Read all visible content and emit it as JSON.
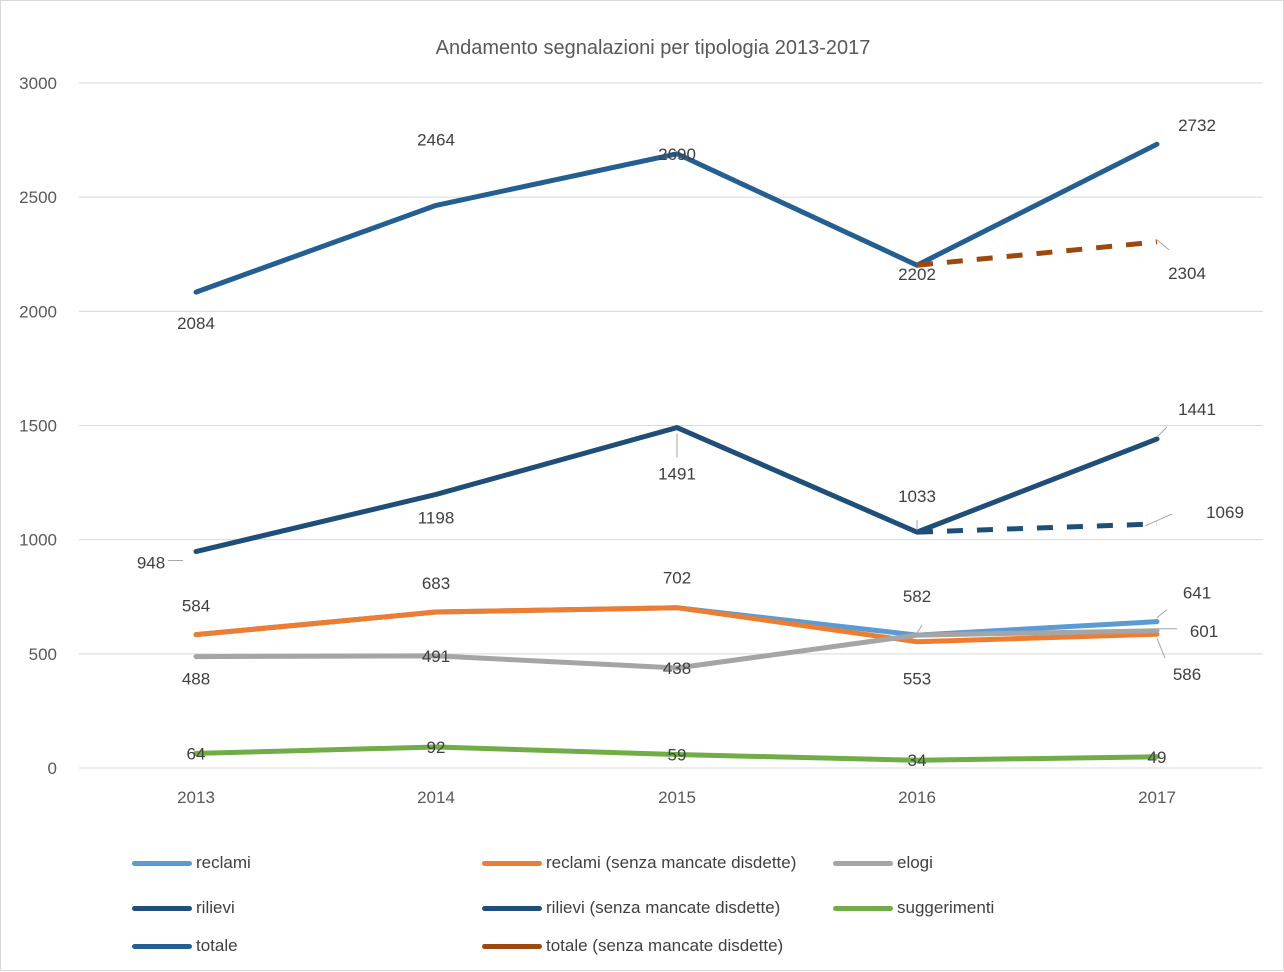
{
  "chart_data": {
    "type": "line",
    "title": "Andamento segnalazioni per tipologia 2013-2017",
    "categories": [
      "2013",
      "2014",
      "2015",
      "2016",
      "2017"
    ],
    "ylim": [
      0,
      3000
    ],
    "yticks": [
      "0",
      "500",
      "1000",
      "1500",
      "2000",
      "2500",
      "3000"
    ],
    "grid": true,
    "legend_position": "bottom",
    "series": [
      {
        "name": "reclami",
        "color": "#5b9bd5",
        "dash": false,
        "values": [
          584,
          683,
          702,
          582,
          641
        ],
        "labels": [
          "",
          "",
          "",
          "",
          "641"
        ]
      },
      {
        "name": "reclami (senza mancate disdette)",
        "color": "#ed7d31",
        "dash": false,
        "values": [
          584,
          683,
          702,
          553,
          586
        ],
        "labels": [
          "584",
          "683",
          "702",
          "553",
          "586"
        ]
      },
      {
        "name": "elogi",
        "color": "#a5a5a5",
        "dash": false,
        "values": [
          488,
          491,
          438,
          582,
          601
        ],
        "labels": [
          "488",
          "491",
          "438",
          "582",
          "601"
        ]
      },
      {
        "name": "rilievi",
        "color": "#1f4e79",
        "dash": false,
        "values": [
          948,
          1198,
          1491,
          1033,
          1441
        ],
        "labels": [
          "948",
          "1198",
          "1491",
          "1033",
          "1441"
        ]
      },
      {
        "name": "rilievi (senza mancate disdette)",
        "color": "#1f4e79",
        "dash": true,
        "values": [
          null,
          null,
          null,
          1033,
          1069
        ],
        "labels": [
          "",
          "",
          "",
          "",
          "1069"
        ]
      },
      {
        "name": "suggerimenti",
        "color": "#70ad47",
        "dash": false,
        "values": [
          64,
          92,
          59,
          34,
          49
        ],
        "labels": [
          "64",
          "92",
          "59",
          "34",
          "49"
        ]
      },
      {
        "name": "totale",
        "color": "#255e91",
        "dash": false,
        "values": [
          2084,
          2464,
          2690,
          2202,
          2732
        ],
        "labels": [
          "2084",
          "2464",
          "2690",
          "2202",
          "2732"
        ]
      },
      {
        "name": "totale (senza mancate disdette)",
        "color": "#9e480e",
        "dash": true,
        "values": [
          null,
          null,
          null,
          2202,
          2304
        ],
        "labels": [
          "",
          "",
          "",
          "",
          "2304"
        ]
      }
    ],
    "legend": [
      {
        "name": "reclami",
        "color": "#5b9bd5"
      },
      {
        "name": "reclami (senza mancate disdette)",
        "color": "#ed7d31"
      },
      {
        "name": "elogi",
        "color": "#a5a5a5"
      },
      {
        "name": "rilievi",
        "color": "#1f4e79"
      },
      {
        "name": "rilievi (senza mancate disdette)",
        "color": "#1f4e79"
      },
      {
        "name": "suggerimenti",
        "color": "#70ad47"
      },
      {
        "name": "totale",
        "color": "#255e91"
      },
      {
        "name": "totale (senza mancate disdette)",
        "color": "#9e480e"
      }
    ]
  }
}
